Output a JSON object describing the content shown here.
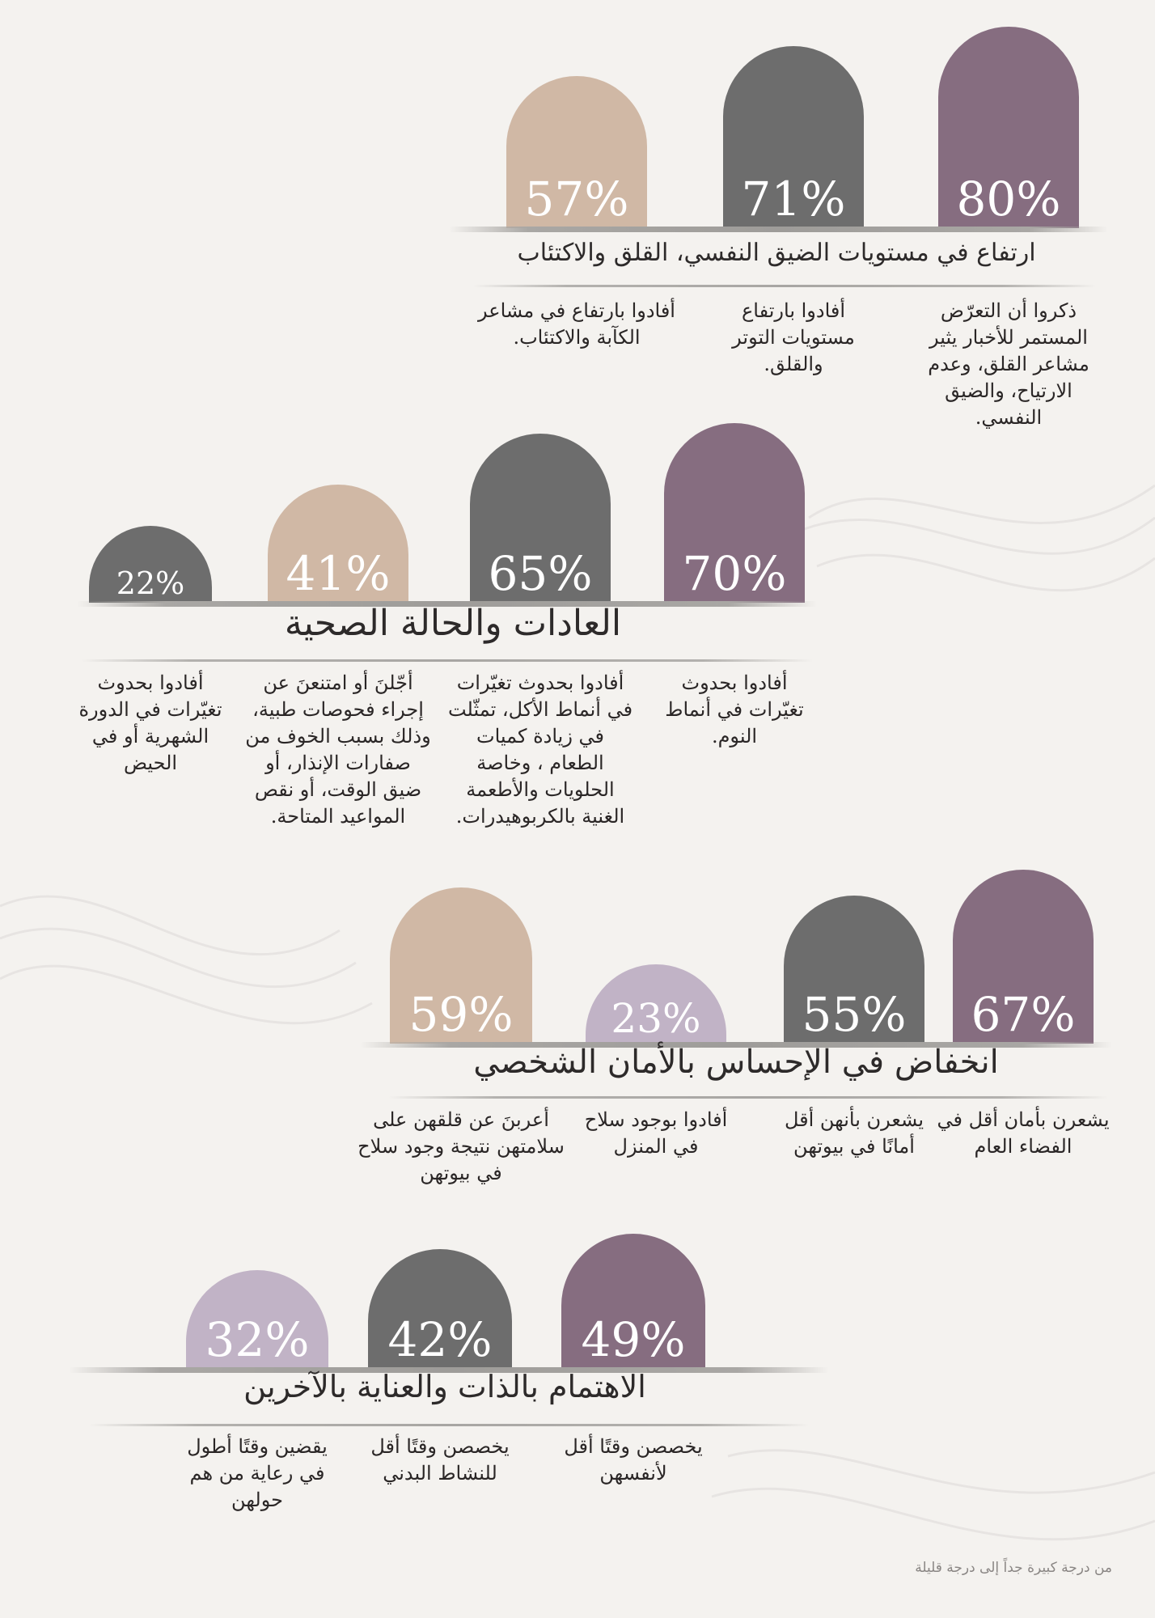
{
  "colors": {
    "mauve": "#866d80",
    "gray": "#6d6d6d",
    "beige": "#d0b8a5",
    "lavender": "#c1b3c6",
    "background": "#f4f2ef"
  },
  "chart_data": [
    {
      "type": "bar",
      "title": "ارتفاع في مستويات الضيق النفسي، القلق والاكتئاب",
      "values": [
        80,
        71,
        57
      ],
      "labels": [
        "80%",
        "71%",
        "57%"
      ],
      "descriptions": [
        "ذكروا أن التعرّض المستمر للأخبار يثير مشاعر القلق، وعدم الارتياح، والضيق النفسي.",
        "أفادوا بارتفاع مستويات التوتر والقلق.",
        "أفادوا بارتفاع في مشاعر الكآبة والاكتئاب."
      ],
      "colors": [
        "#866d80",
        "#6d6d6d",
        "#d0b8a5"
      ]
    },
    {
      "type": "bar",
      "title": "العادات والحالة الصحية",
      "values": [
        70,
        65,
        41,
        22
      ],
      "labels": [
        "70%",
        "65%",
        "41%",
        "22%"
      ],
      "descriptions": [
        "أفادوا بحدوث تغيّرات في أنماط النوم.",
        "أفادوا بحدوث تغيّرات في أنماط الأكل، تمثّلت في زيادة كميات الطعام ، وخاصة الحلويات والأطعمة الغنية بالكربوهيدرات.",
        "أجّلنَ أو امتنعنَ عن إجراء فحوصات طبية، وذلك بسبب الخوف من صفارات الإنذار، أو ضيق الوقت، أو نقص المواعيد المتاحة.",
        "أفادوا بحدوث تغيّرات في الدورة الشهرية أو في الحيض"
      ],
      "colors": [
        "#866d80",
        "#6d6d6d",
        "#d0b8a5",
        "#6d6d6d"
      ]
    },
    {
      "type": "bar",
      "title": "انخفاض في الإحساس بالأمان الشخصي",
      "values": [
        67,
        55,
        23,
        59
      ],
      "labels": [
        "67%",
        "55%",
        "23%",
        "59%"
      ],
      "descriptions": [
        "يشعرن بأمان أقل في الفضاء العام",
        "يشعرن بأنهن أقل أمانًا في بيوتهن",
        "أفادوا بوجود سلاح في المنزل",
        "أعربنَ عن قلقهن على سلامتهن نتيجة وجود سلاح في بيوتهن"
      ],
      "colors": [
        "#866d80",
        "#6d6d6d",
        "#c1b3c6",
        "#d0b8a5"
      ]
    },
    {
      "type": "bar",
      "title": "الاهتمام بالذات والعناية بالآخرين",
      "values": [
        49,
        42,
        32
      ],
      "labels": [
        "49%",
        "42%",
        "32%"
      ],
      "descriptions": [
        "يخصصن وقتًا أقل لأنفسهن",
        "يخصصن وقتًا أقل للنشاط البدني",
        "يقضين وقتًا أطول في رعاية من هم حولهن"
      ],
      "colors": [
        "#866d80",
        "#6d6d6d",
        "#c1b3c6"
      ]
    }
  ],
  "footnote": "من درجة كبيرة جداً إلى درجة قليلة"
}
